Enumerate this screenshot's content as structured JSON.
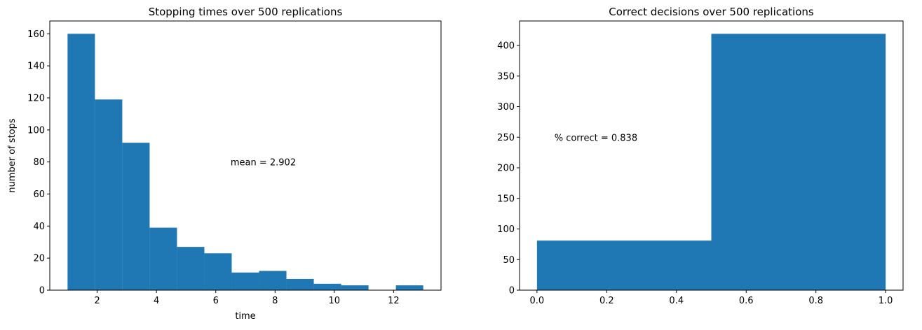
{
  "colors": {
    "bar": "#1f77b4",
    "axis": "#000000",
    "background": "#ffffff"
  },
  "chart_data": [
    {
      "type": "bar",
      "title": "Stopping times over 500 replications",
      "xlabel": "time",
      "ylabel": "number of stops",
      "xlim": [
        0.4,
        13.6
      ],
      "ylim": [
        0,
        168
      ],
      "xticks": [
        2,
        4,
        6,
        8,
        10,
        12
      ],
      "xtick_labels": [
        "2",
        "4",
        "6",
        "8",
        "10",
        "12"
      ],
      "yticks": [
        0,
        20,
        40,
        60,
        80,
        100,
        120,
        140,
        160
      ],
      "ytick_labels": [
        "0",
        "20",
        "40",
        "60",
        "80",
        "100",
        "120",
        "140",
        "160"
      ],
      "bin_edges": [
        1.0,
        1.923,
        2.846,
        3.769,
        4.692,
        5.615,
        6.538,
        7.462,
        8.385,
        9.308,
        10.231,
        11.154,
        12.077,
        13.0
      ],
      "values": [
        160,
        119,
        92,
        39,
        27,
        23,
        11,
        12,
        7,
        4,
        3,
        0,
        3
      ],
      "annotation": {
        "text": "mean = 2.902",
        "x": 6.5,
        "y": 80
      },
      "grid": false
    },
    {
      "type": "bar",
      "title": "Correct decisions over 500 replications",
      "xlabel": "",
      "ylabel": "",
      "xlim": [
        -0.05,
        1.05
      ],
      "ylim": [
        0,
        440
      ],
      "xticks": [
        0.0,
        0.2,
        0.4,
        0.6,
        0.8,
        1.0
      ],
      "xtick_labels": [
        "0.0",
        "0.2",
        "0.4",
        "0.6",
        "0.8",
        "1.0"
      ],
      "yticks": [
        0,
        50,
        100,
        150,
        200,
        250,
        300,
        350,
        400
      ],
      "ytick_labels": [
        "0",
        "50",
        "100",
        "150",
        "200",
        "250",
        "300",
        "350",
        "400"
      ],
      "bin_edges": [
        0.0,
        0.5,
        1.0
      ],
      "values": [
        81,
        419
      ],
      "annotation": {
        "text": "% correct = 0.838",
        "x": 0.05,
        "y": 250
      },
      "grid": false
    }
  ]
}
